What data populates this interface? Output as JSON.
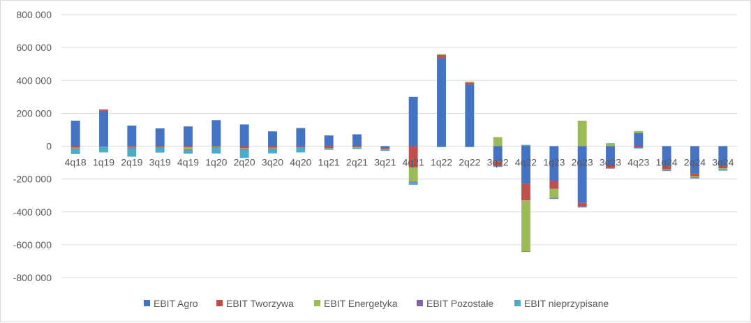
{
  "chart_data": {
    "type": "bar",
    "stacked": true,
    "categories": [
      "4q18",
      "1q19",
      "2q19",
      "3q19",
      "4q19",
      "1q20",
      "2q20",
      "3q20",
      "4q20",
      "1q21",
      "2q21",
      "3q21",
      "4q21",
      "1q22",
      "2q22",
      "3q22",
      "4q22",
      "1q23",
      "2q23",
      "3q23",
      "4q23",
      "1q24",
      "2q24",
      "3q24"
    ],
    "series": [
      {
        "name": "EBIT Agro",
        "color": "#4472C4",
        "values": [
          155000,
          215000,
          125000,
          108000,
          120000,
          158000,
          132000,
          90000,
          108000,
          65000,
          72000,
          -12000,
          300000,
          535000,
          375000,
          -95000,
          -230000,
          -210000,
          -345000,
          -115000,
          80000,
          -120000,
          -165000,
          -120000
        ]
      },
      {
        "name": "EBIT Tworzywa",
        "color": "#C0504D",
        "values": [
          -10000,
          8000,
          -5000,
          -4000,
          -6000,
          -3000,
          -12000,
          -10000,
          -4000,
          -12000,
          -6000,
          -8000,
          -130000,
          20000,
          12000,
          -25000,
          -100000,
          -50000,
          -20000,
          -18000,
          -8000,
          -20000,
          -18000,
          -15000
        ]
      },
      {
        "name": "EBIT Energetyka",
        "color": "#9BBB59",
        "values": [
          -5000,
          2000,
          -3000,
          -2000,
          -15000,
          -4000,
          -5000,
          -5000,
          4000,
          -3000,
          -4000,
          -2000,
          -85000,
          5000,
          5000,
          55000,
          -310000,
          -55000,
          155000,
          15000,
          12000,
          -5000,
          -8000,
          -8000
        ]
      },
      {
        "name": "EBIT Pozostałe",
        "color": "#8064A2",
        "values": [
          -3000,
          -3000,
          -6000,
          -3000,
          -5000,
          -3000,
          -5000,
          -4000,
          -4000,
          -2000,
          -2000,
          -3000,
          -5000,
          -3000,
          -3000,
          -3000,
          -2000,
          -3000,
          -5000,
          -3000,
          -3000,
          -3000,
          -3000,
          -3000
        ]
      },
      {
        "name": "EBIT nieprzypisane",
        "color": "#4BACC6",
        "values": [
          -30000,
          -35000,
          -50000,
          -30000,
          -20000,
          -35000,
          -50000,
          -25000,
          -30000,
          -5000,
          -5000,
          -3000,
          -15000,
          -3000,
          -3000,
          -3000,
          8000,
          -2000,
          -3000,
          3000,
          -3000,
          -3000,
          -3000,
          -3000
        ]
      }
    ],
    "ylim": [
      -800000,
      800000
    ],
    "yticks": [
      -800000,
      -600000,
      -400000,
      -200000,
      0,
      200000,
      400000,
      600000,
      800000
    ],
    "ytick_labels": [
      "-800 000",
      "-600 000",
      "-400 000",
      "-200 000",
      "0",
      "200 000",
      "400 000",
      "600 000",
      "800 000"
    ],
    "grid": true,
    "legend_position": "bottom"
  }
}
